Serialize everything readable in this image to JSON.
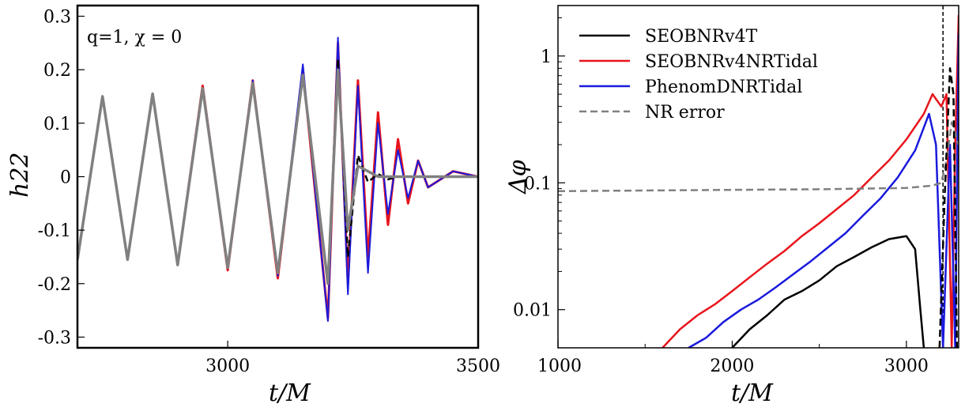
{
  "chart_data": [
    {
      "type": "line",
      "annotation": "q=1, χ = 0",
      "xlabel": "t/M",
      "ylabel": "h22",
      "xlim": [
        2700,
        3500
      ],
      "ylim": [
        -0.32,
        0.32
      ],
      "xticks": [
        {
          "value": 3000,
          "label": "3000"
        },
        {
          "value": 3500,
          "label": "3500"
        }
      ],
      "yticks": [
        {
          "value": 0.3,
          "label": "0.3"
        },
        {
          "value": 0.2,
          "label": "0.2"
        },
        {
          "value": 0.1,
          "label": "0.1"
        },
        {
          "value": 0,
          "label": "0"
        },
        {
          "value": -0.1,
          "label": "-0.1"
        },
        {
          "value": -0.2,
          "label": "-0.2"
        },
        {
          "value": -0.3,
          "label": "-0.3"
        }
      ],
      "colors": {
        "SEOBNRv4T": "#000000",
        "SEOBNRv4NRTidal": "#e8141c",
        "PhenomDNRTidal": "#1a1adc",
        "NR": "#808080"
      },
      "series": [
        {
          "key": "SEOBNRv4NRTidal",
          "x": [
            2700,
            2750,
            2800,
            2850,
            2900,
            2950,
            3000,
            3050,
            3100,
            3150,
            3200,
            3220,
            3240,
            3260,
            3280,
            3300,
            3320,
            3340,
            3360,
            3380,
            3400,
            3450,
            3500
          ],
          "y": [
            -0.155,
            0.15,
            -0.155,
            0.155,
            -0.165,
            0.17,
            -0.175,
            0.18,
            -0.19,
            0.2,
            -0.265,
            0.25,
            -0.2,
            0.18,
            -0.15,
            0.12,
            -0.09,
            0.07,
            -0.05,
            0.03,
            -0.02,
            0.01,
            0
          ]
        },
        {
          "key": "PhenomDNRTidal",
          "x": [
            2700,
            2750,
            2800,
            2850,
            2900,
            2950,
            3000,
            3050,
            3100,
            3150,
            3200,
            3220,
            3240,
            3260,
            3280,
            3300,
            3320,
            3340,
            3360,
            3380,
            3400,
            3450,
            3500
          ],
          "y": [
            -0.155,
            0.15,
            -0.155,
            0.155,
            -0.165,
            0.165,
            -0.17,
            0.18,
            -0.185,
            0.21,
            -0.27,
            0.26,
            -0.22,
            0.17,
            -0.18,
            0.1,
            -0.07,
            0.05,
            -0.04,
            0.03,
            -0.02,
            0.01,
            0
          ]
        },
        {
          "key": "SEOBNRv4T",
          "x": [
            2700,
            2750,
            2800,
            2850,
            2900,
            2950,
            3000,
            3050,
            3100,
            3150,
            3200,
            3220,
            3240,
            3260,
            3280,
            3300,
            3320,
            3340,
            3360,
            3380,
            3400,
            3450,
            3500
          ],
          "y": [
            -0.155,
            0.15,
            -0.155,
            0.155,
            -0.165,
            0.165,
            -0.17,
            0.175,
            -0.18,
            0.19,
            -0.2,
            0.22,
            -0.15,
            0.04,
            -0.01,
            0.005,
            -0.005,
            0,
            0,
            0,
            0,
            0,
            0
          ]
        },
        {
          "key": "NR",
          "x": [
            2700,
            2750,
            2800,
            2850,
            2900,
            2950,
            3000,
            3050,
            3100,
            3150,
            3200,
            3220,
            3240,
            3260,
            3280,
            3300,
            3320,
            3340,
            3360,
            3380,
            3400,
            3450,
            3500
          ],
          "y": [
            -0.155,
            0.15,
            -0.155,
            0.155,
            -0.165,
            0.165,
            -0.17,
            0.175,
            -0.18,
            0.19,
            -0.2,
            0.2,
            -0.1,
            0.02,
            0.01,
            0,
            0,
            0,
            0,
            0,
            0,
            0,
            0
          ]
        }
      ]
    },
    {
      "type": "line",
      "xlabel": "t/M",
      "ylabel": "Δφ",
      "yscale": "log",
      "xlim": [
        1000,
        3300
      ],
      "ylim": [
        0.005,
        2.5
      ],
      "xticks": [
        {
          "value": 1000,
          "label": "1000"
        },
        {
          "value": 2000,
          "label": "2000"
        },
        {
          "value": 3000,
          "label": "3000"
        }
      ],
      "yticks": [
        {
          "value": 0.01,
          "label": "0.01"
        },
        {
          "value": 0.1,
          "label": "0.1"
        },
        {
          "value": 1,
          "label": "1"
        }
      ],
      "vline": 3210,
      "legend": {
        "position": "top-left"
      },
      "series": [
        {
          "name": "SEOBNRv4T",
          "color": "#000000",
          "dash": "solid",
          "x": [
            2000,
            2100,
            2200,
            2300,
            2400,
            2500,
            2600,
            2700,
            2800,
            2900,
            3000,
            3050,
            3080,
            3100
          ],
          "y": [
            0.005,
            0.007,
            0.009,
            0.012,
            0.014,
            0.017,
            0.022,
            0.026,
            0.031,
            0.036,
            0.038,
            0.03,
            0.01,
            0.005
          ]
        },
        {
          "name": "SEOBNRv4NRTidal",
          "color": "#e8141c",
          "dash": "solid",
          "x": [
            1600,
            1700,
            1800,
            1900,
            2000,
            2100,
            2200,
            2300,
            2400,
            2500,
            2600,
            2700,
            2800,
            2900,
            3000,
            3100,
            3150,
            3200,
            3230,
            3260,
            3280,
            3300
          ],
          "y": [
            0.005,
            0.007,
            0.009,
            0.011,
            0.014,
            0.018,
            0.023,
            0.029,
            0.038,
            0.048,
            0.062,
            0.08,
            0.11,
            0.15,
            0.22,
            0.35,
            0.5,
            0.4,
            0.5,
            0.005,
            0.2,
            2.1
          ]
        },
        {
          "name": "PhenomDNRTidal",
          "color": "#1a1adc",
          "dash": "solid",
          "x": [
            1750,
            1850,
            1950,
            2050,
            2150,
            2250,
            2350,
            2450,
            2550,
            2650,
            2750,
            2850,
            2950,
            3050,
            3130,
            3170,
            3210,
            3250,
            3280,
            3300
          ],
          "y": [
            0.005,
            0.006,
            0.008,
            0.01,
            0.012,
            0.015,
            0.019,
            0.024,
            0.031,
            0.04,
            0.055,
            0.075,
            0.11,
            0.18,
            0.35,
            0.2,
            0.005,
            0.2,
            0.005,
            1.5
          ]
        },
        {
          "name": "NR error",
          "color": "#808080",
          "dash": "dashed",
          "x": [
            1000,
            1500,
            2000,
            2500,
            3000,
            3150,
            3200,
            3230,
            3260,
            3300
          ],
          "y": [
            0.086,
            0.087,
            0.088,
            0.089,
            0.091,
            0.095,
            0.1,
            0.15,
            0.3,
            0.2
          ]
        },
        {
          "name": "",
          "color": "#000000",
          "dash": "dashed",
          "x": [
            3190,
            3220,
            3250,
            3270,
            3290
          ],
          "y": [
            0.005,
            0.08,
            0.8,
            0.5,
            0.005
          ]
        }
      ]
    }
  ]
}
